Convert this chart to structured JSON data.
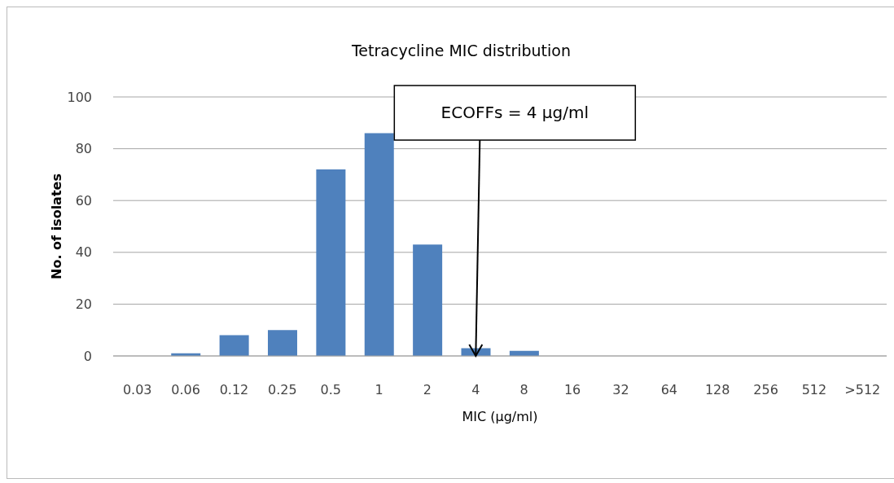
{
  "chart_data": {
    "type": "bar",
    "title": "Tetracycline MIC distribution",
    "xlabel": "MIC (μg/ml)",
    "ylabel": "No. of isolates",
    "categories": [
      "0.03",
      "0.06",
      "0.12",
      "0.25",
      "0.5",
      "1",
      "2",
      "4",
      "8",
      "16",
      "32",
      "64",
      "128",
      "256",
      "512",
      ">512"
    ],
    "values": [
      0,
      1,
      8,
      10,
      72,
      86,
      43,
      3,
      2,
      0,
      0,
      0,
      0,
      0,
      0,
      0
    ],
    "color": "#4f81bd",
    "ylim": [
      0,
      100
    ],
    "yticks": [
      0,
      20,
      40,
      60,
      80,
      100
    ],
    "grid": "y",
    "legend": false,
    "annotations": [
      {
        "text": "ECOFFs = 4 μg/ml",
        "x": "4",
        "y": 0
      }
    ]
  }
}
